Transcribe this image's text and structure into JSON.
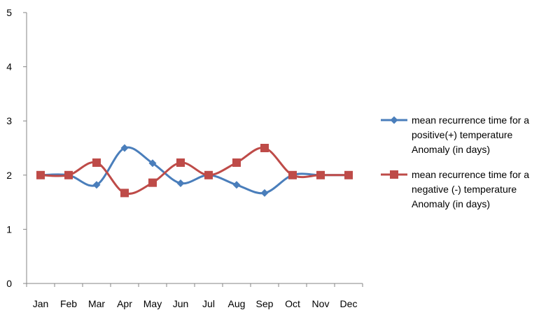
{
  "chart_data": {
    "type": "line",
    "categories": [
      "Jan",
      "Feb",
      "Mar",
      "Apr",
      "May",
      "Jun",
      "Jul",
      "Aug",
      "Sep",
      "Oct",
      "Nov",
      "Dec"
    ],
    "ylim": [
      0,
      5
    ],
    "yticks": [
      0,
      1,
      2,
      3,
      4,
      5
    ],
    "grid": false,
    "smooth": true,
    "legend_position": "right",
    "series": [
      {
        "name": "mean recurrence time for a positive(+) temperature Anomaly (in days)",
        "legend_lines": [
          "mean recurrence time for a",
          "positive(+) temperature",
          "Anomaly (in days)"
        ],
        "marker": "diamond",
        "color": "#4a7ebb",
        "values": [
          2.0,
          2.0,
          1.82,
          2.5,
          2.22,
          1.85,
          2.0,
          1.82,
          1.67,
          2.0,
          2.0,
          2.0
        ]
      },
      {
        "name": "mean recurrence time for a negative (-) temperature Anomaly (in days)",
        "legend_lines": [
          "mean recurrence time for a",
          "negative (-) temperature",
          "Anomaly (in days)"
        ],
        "marker": "square",
        "color": "#be4b48",
        "values": [
          2.0,
          2.0,
          2.23,
          1.67,
          1.86,
          2.23,
          2.0,
          2.23,
          2.5,
          2.0,
          2.0,
          2.0
        ]
      }
    ]
  }
}
